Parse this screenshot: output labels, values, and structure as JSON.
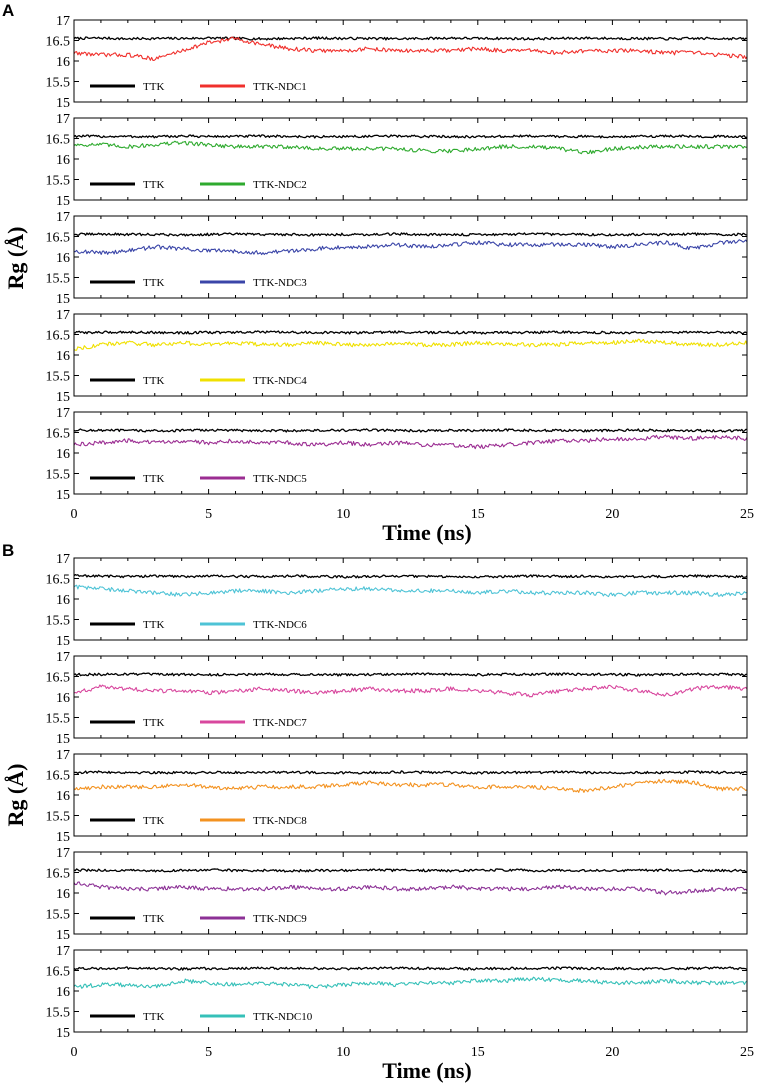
{
  "panels": [
    {
      "label": "A",
      "xlabel": "Time (ns)",
      "ylabel": "Rg (Å)",
      "xticks": [
        "0",
        "5",
        "10",
        "15",
        "20",
        "25"
      ]
    },
    {
      "label": "B",
      "xlabel": "Time (ns)",
      "ylabel": "Rg (Å)",
      "xticks": [
        "0",
        "5",
        "10",
        "15",
        "20",
        "25"
      ]
    }
  ],
  "chart_data": [
    {
      "type": "line",
      "panel": "A",
      "title": "",
      "xlabel": "Time (ns)",
      "ylabel": "Rg (Å)",
      "xlim": [
        0,
        25
      ],
      "ylim": [
        15,
        17
      ],
      "yticks": [
        "15",
        "15.5",
        "16",
        "16.5",
        "17"
      ],
      "x": [
        0,
        1,
        2,
        3,
        4,
        5,
        6,
        7,
        8,
        9,
        10,
        11,
        12,
        13,
        14,
        15,
        16,
        17,
        18,
        19,
        20,
        21,
        22,
        23,
        24,
        25
      ],
      "series": [
        {
          "name": "TTK",
          "color": "#000000",
          "values": [
            16.55,
            16.56,
            16.54,
            16.55,
            16.55,
            16.56,
            16.55,
            16.54,
            16.55,
            16.56,
            16.55,
            16.55,
            16.54,
            16.55,
            16.56,
            16.55,
            16.55,
            16.54,
            16.55,
            16.56,
            16.55,
            16.55,
            16.54,
            16.55,
            16.55,
            16.54
          ]
        },
        {
          "name": "TTK-NDC1",
          "color": "#f0302c",
          "values": [
            16.2,
            16.15,
            16.15,
            16.05,
            16.25,
            16.45,
            16.55,
            16.4,
            16.3,
            16.25,
            16.25,
            16.3,
            16.25,
            16.25,
            16.25,
            16.3,
            16.25,
            16.25,
            16.2,
            16.25,
            16.25,
            16.25,
            16.2,
            16.2,
            16.15,
            16.1
          ]
        }
      ]
    },
    {
      "type": "line",
      "panel": "A",
      "title": "",
      "xlabel": "Time (ns)",
      "ylabel": "Rg (Å)",
      "xlim": [
        0,
        25
      ],
      "ylim": [
        15,
        17
      ],
      "yticks": [
        "15",
        "15.5",
        "16",
        "16.5",
        "17"
      ],
      "x": [
        0,
        1,
        2,
        3,
        4,
        5,
        6,
        7,
        8,
        9,
        10,
        11,
        12,
        13,
        14,
        15,
        16,
        17,
        18,
        19,
        20,
        21,
        22,
        23,
        24,
        25
      ],
      "series": [
        {
          "name": "TTK",
          "color": "#000000",
          "values": [
            16.56,
            16.55,
            16.55,
            16.54,
            16.56,
            16.55,
            16.55,
            16.56,
            16.55,
            16.54,
            16.55,
            16.55,
            16.56,
            16.55,
            16.55,
            16.54,
            16.55,
            16.56,
            16.55,
            16.55,
            16.54,
            16.55,
            16.56,
            16.55,
            16.55,
            16.54
          ]
        },
        {
          "name": "TTK-NDC2",
          "color": "#2eaa2e",
          "values": [
            16.35,
            16.35,
            16.3,
            16.35,
            16.4,
            16.35,
            16.3,
            16.3,
            16.3,
            16.25,
            16.25,
            16.25,
            16.25,
            16.2,
            16.2,
            16.25,
            16.3,
            16.3,
            16.25,
            16.15,
            16.25,
            16.3,
            16.3,
            16.3,
            16.3,
            16.3
          ]
        }
      ]
    },
    {
      "type": "line",
      "panel": "A",
      "title": "",
      "xlabel": "Time (ns)",
      "ylabel": "Rg (Å)",
      "xlim": [
        0,
        25
      ],
      "ylim": [
        15,
        17
      ],
      "yticks": [
        "15",
        "15.5",
        "16",
        "16.5",
        "17"
      ],
      "x": [
        0,
        1,
        2,
        3,
        4,
        5,
        6,
        7,
        8,
        9,
        10,
        11,
        12,
        13,
        14,
        15,
        16,
        17,
        18,
        19,
        20,
        21,
        22,
        23,
        24,
        25
      ],
      "series": [
        {
          "name": "TTK",
          "color": "#000000",
          "values": [
            16.55,
            16.56,
            16.55,
            16.55,
            16.54,
            16.55,
            16.56,
            16.55,
            16.55,
            16.54,
            16.55,
            16.55,
            16.56,
            16.55,
            16.54,
            16.55,
            16.55,
            16.56,
            16.55,
            16.55,
            16.54,
            16.55,
            16.55,
            16.56,
            16.55,
            16.55
          ]
        },
        {
          "name": "TTK-NDC3",
          "color": "#3a45a8",
          "values": [
            16.15,
            16.1,
            16.15,
            16.25,
            16.2,
            16.15,
            16.15,
            16.1,
            16.15,
            16.2,
            16.25,
            16.25,
            16.3,
            16.25,
            16.3,
            16.35,
            16.3,
            16.3,
            16.3,
            16.3,
            16.25,
            16.3,
            16.35,
            16.2,
            16.35,
            16.4
          ]
        }
      ]
    },
    {
      "type": "line",
      "panel": "A",
      "title": "",
      "xlabel": "Time (ns)",
      "ylabel": "Rg (Å)",
      "xlim": [
        0,
        25
      ],
      "ylim": [
        15,
        17
      ],
      "yticks": [
        "15",
        "15.5",
        "16",
        "16.5",
        "17"
      ],
      "x": [
        0,
        1,
        2,
        3,
        4,
        5,
        6,
        7,
        8,
        9,
        10,
        11,
        12,
        13,
        14,
        15,
        16,
        17,
        18,
        19,
        20,
        21,
        22,
        23,
        24,
        25
      ],
      "series": [
        {
          "name": "TTK",
          "color": "#000000",
          "values": [
            16.55,
            16.55,
            16.56,
            16.55,
            16.54,
            16.55,
            16.55,
            16.56,
            16.55,
            16.55,
            16.54,
            16.55,
            16.56,
            16.55,
            16.55,
            16.54,
            16.55,
            16.55,
            16.56,
            16.55,
            16.55,
            16.54,
            16.55,
            16.55,
            16.56,
            16.55
          ]
        },
        {
          "name": "TTK-NDC4",
          "color": "#f0e000",
          "values": [
            16.15,
            16.25,
            16.3,
            16.25,
            16.3,
            16.25,
            16.3,
            16.25,
            16.25,
            16.3,
            16.25,
            16.25,
            16.3,
            16.25,
            16.25,
            16.3,
            16.25,
            16.25,
            16.25,
            16.3,
            16.3,
            16.35,
            16.3,
            16.25,
            16.25,
            16.3
          ]
        }
      ]
    },
    {
      "type": "line",
      "panel": "A",
      "title": "",
      "xlabel": "Time (ns)",
      "ylabel": "Rg (Å)",
      "xlim": [
        0,
        25
      ],
      "ylim": [
        15,
        17
      ],
      "yticks": [
        "15",
        "15.5",
        "16",
        "16.5",
        "17"
      ],
      "x": [
        0,
        1,
        2,
        3,
        4,
        5,
        6,
        7,
        8,
        9,
        10,
        11,
        12,
        13,
        14,
        15,
        16,
        17,
        18,
        19,
        20,
        21,
        22,
        23,
        24,
        25
      ],
      "series": [
        {
          "name": "TTK",
          "color": "#000000",
          "values": [
            16.56,
            16.55,
            16.55,
            16.54,
            16.55,
            16.56,
            16.55,
            16.55,
            16.54,
            16.55,
            16.55,
            16.56,
            16.55,
            16.54,
            16.55,
            16.55,
            16.56,
            16.55,
            16.55,
            16.54,
            16.55,
            16.56,
            16.55,
            16.55,
            16.54,
            16.55
          ]
        },
        {
          "name": "TTK-NDC5",
          "color": "#9b2d92",
          "values": [
            16.2,
            16.25,
            16.3,
            16.25,
            16.3,
            16.25,
            16.3,
            16.25,
            16.25,
            16.2,
            16.25,
            16.2,
            16.25,
            16.2,
            16.2,
            16.15,
            16.2,
            16.25,
            16.3,
            16.3,
            16.35,
            16.35,
            16.4,
            16.35,
            16.4,
            16.35
          ]
        }
      ]
    },
    {
      "type": "line",
      "panel": "B",
      "title": "",
      "xlabel": "Time (ns)",
      "ylabel": "Rg (Å)",
      "xlim": [
        0,
        25
      ],
      "ylim": [
        15,
        17
      ],
      "yticks": [
        "15",
        "15.5",
        "16",
        "16.5",
        "17"
      ],
      "x": [
        0,
        1,
        2,
        3,
        4,
        5,
        6,
        7,
        8,
        9,
        10,
        11,
        12,
        13,
        14,
        15,
        16,
        17,
        18,
        19,
        20,
        21,
        22,
        23,
        24,
        25
      ],
      "series": [
        {
          "name": "TTK",
          "color": "#000000",
          "values": [
            16.57,
            16.56,
            16.55,
            16.56,
            16.55,
            16.56,
            16.55,
            16.55,
            16.56,
            16.55,
            16.54,
            16.55,
            16.56,
            16.55,
            16.55,
            16.54,
            16.55,
            16.56,
            16.55,
            16.55,
            16.54,
            16.55,
            16.55,
            16.56,
            16.55,
            16.55
          ]
        },
        {
          "name": "TTK-NDC6",
          "color": "#4ec3d6",
          "values": [
            16.3,
            16.25,
            16.2,
            16.15,
            16.1,
            16.15,
            16.2,
            16.2,
            16.15,
            16.2,
            16.25,
            16.25,
            16.2,
            16.2,
            16.2,
            16.15,
            16.2,
            16.15,
            16.15,
            16.15,
            16.1,
            16.15,
            16.15,
            16.15,
            16.1,
            16.15
          ]
        }
      ]
    },
    {
      "type": "line",
      "panel": "B",
      "title": "",
      "xlabel": "Time (ns)",
      "ylabel": "Rg (Å)",
      "xlim": [
        0,
        25
      ],
      "ylim": [
        15,
        17
      ],
      "yticks": [
        "15",
        "15.5",
        "16",
        "16.5",
        "17"
      ],
      "x": [
        0,
        1,
        2,
        3,
        4,
        5,
        6,
        7,
        8,
        9,
        10,
        11,
        12,
        13,
        14,
        15,
        16,
        17,
        18,
        19,
        20,
        21,
        22,
        23,
        24,
        25
      ],
      "series": [
        {
          "name": "TTK",
          "color": "#000000",
          "values": [
            16.55,
            16.55,
            16.56,
            16.55,
            16.55,
            16.54,
            16.55,
            16.56,
            16.55,
            16.55,
            16.54,
            16.55,
            16.55,
            16.56,
            16.55,
            16.54,
            16.55,
            16.55,
            16.56,
            16.55,
            16.55,
            16.54,
            16.55,
            16.56,
            16.55,
            16.55
          ]
        },
        {
          "name": "TTK-NDC7",
          "color": "#d8479e",
          "values": [
            16.1,
            16.25,
            16.2,
            16.15,
            16.15,
            16.1,
            16.15,
            16.2,
            16.15,
            16.1,
            16.15,
            16.2,
            16.15,
            16.15,
            16.2,
            16.15,
            16.1,
            16.05,
            16.15,
            16.2,
            16.25,
            16.15,
            16.05,
            16.2,
            16.25,
            16.2
          ]
        }
      ]
    },
    {
      "type": "line",
      "panel": "B",
      "title": "",
      "xlabel": "Time (ns)",
      "ylabel": "Rg (Å)",
      "xlim": [
        0,
        25
      ],
      "ylim": [
        15,
        17
      ],
      "yticks": [
        "15",
        "15.5",
        "16",
        "16.5",
        "17"
      ],
      "x": [
        0,
        1,
        2,
        3,
        4,
        5,
        6,
        7,
        8,
        9,
        10,
        11,
        12,
        13,
        14,
        15,
        16,
        17,
        18,
        19,
        20,
        21,
        22,
        23,
        24,
        25
      ],
      "series": [
        {
          "name": "TTK",
          "color": "#000000",
          "values": [
            16.55,
            16.56,
            16.55,
            16.55,
            16.54,
            16.55,
            16.55,
            16.56,
            16.55,
            16.55,
            16.54,
            16.55,
            16.56,
            16.55,
            16.55,
            16.54,
            16.55,
            16.55,
            16.56,
            16.55,
            16.54,
            16.55,
            16.55,
            16.56,
            16.55,
            16.55
          ]
        },
        {
          "name": "TTK-NDC8",
          "color": "#f39220",
          "values": [
            16.15,
            16.2,
            16.2,
            16.2,
            16.25,
            16.2,
            16.15,
            16.2,
            16.2,
            16.2,
            16.25,
            16.3,
            16.25,
            16.25,
            16.25,
            16.2,
            16.2,
            16.2,
            16.15,
            16.1,
            16.2,
            16.3,
            16.35,
            16.3,
            16.15,
            16.15
          ]
        }
      ]
    },
    {
      "type": "line",
      "panel": "B",
      "title": "",
      "xlabel": "Time (ns)",
      "ylabel": "Rg (Å)",
      "xlim": [
        0,
        25
      ],
      "ylim": [
        15,
        17
      ],
      "yticks": [
        "15",
        "15.5",
        "16",
        "16.5",
        "17"
      ],
      "x": [
        0,
        1,
        2,
        3,
        4,
        5,
        6,
        7,
        8,
        9,
        10,
        11,
        12,
        13,
        14,
        15,
        16,
        17,
        18,
        19,
        20,
        21,
        22,
        23,
        24,
        25
      ],
      "series": [
        {
          "name": "TTK",
          "color": "#000000",
          "values": [
            16.56,
            16.55,
            16.55,
            16.54,
            16.55,
            16.56,
            16.55,
            16.55,
            16.54,
            16.55,
            16.55,
            16.56,
            16.55,
            16.55,
            16.54,
            16.55,
            16.56,
            16.55,
            16.55,
            16.54,
            16.55,
            16.55,
            16.56,
            16.55,
            16.55,
            16.54
          ]
        },
        {
          "name": "TTK-NDC9",
          "color": "#8c3196",
          "values": [
            16.25,
            16.15,
            16.1,
            16.1,
            16.15,
            16.1,
            16.1,
            16.1,
            16.15,
            16.1,
            16.1,
            16.15,
            16.1,
            16.1,
            16.15,
            16.1,
            16.1,
            16.1,
            16.15,
            16.1,
            16.1,
            16.1,
            16.0,
            16.05,
            16.1,
            16.1
          ]
        }
      ]
    },
    {
      "type": "line",
      "panel": "B",
      "title": "",
      "xlabel": "Time (ns)",
      "ylabel": "Rg (Å)",
      "xlim": [
        0,
        25
      ],
      "ylim": [
        15,
        17
      ],
      "yticks": [
        "15",
        "15.5",
        "16",
        "16.5",
        "17"
      ],
      "x": [
        0,
        1,
        2,
        3,
        4,
        5,
        6,
        7,
        8,
        9,
        10,
        11,
        12,
        13,
        14,
        15,
        16,
        17,
        18,
        19,
        20,
        21,
        22,
        23,
        24,
        25
      ],
      "series": [
        {
          "name": "TTK",
          "color": "#000000",
          "values": [
            16.55,
            16.55,
            16.56,
            16.55,
            16.54,
            16.55,
            16.55,
            16.56,
            16.55,
            16.55,
            16.54,
            16.55,
            16.56,
            16.55,
            16.55,
            16.54,
            16.55,
            16.55,
            16.56,
            16.55,
            16.55,
            16.54,
            16.55,
            16.55,
            16.56,
            16.55
          ]
        },
        {
          "name": "TTK-NDC10",
          "color": "#35c0b8",
          "values": [
            16.1,
            16.15,
            16.15,
            16.1,
            16.25,
            16.2,
            16.15,
            16.2,
            16.15,
            16.1,
            16.15,
            16.2,
            16.15,
            16.2,
            16.2,
            16.25,
            16.25,
            16.3,
            16.25,
            16.25,
            16.2,
            16.2,
            16.25,
            16.2,
            16.2,
            16.2
          ]
        }
      ]
    }
  ]
}
